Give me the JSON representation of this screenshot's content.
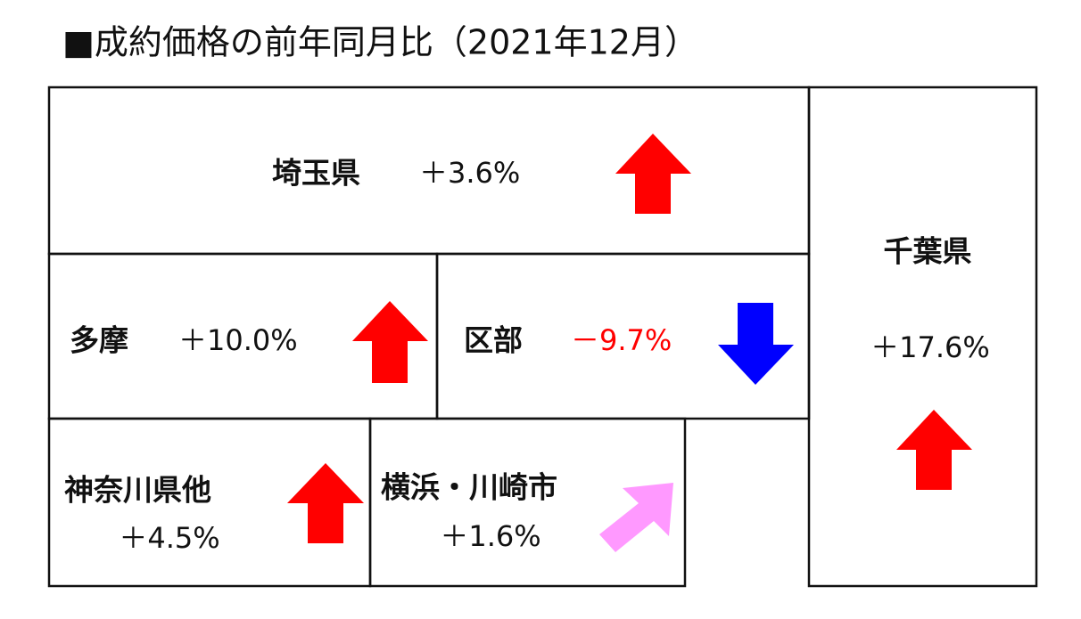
{
  "title": "■成約価格の前年同月比（2021年12月）",
  "regions": [
    {
      "name": "埼玉県",
      "change": "＋3.6%"
    },
    {
      "name": "千葉県",
      "change": "＋17.6%"
    },
    {
      "name": "多摩",
      "change": "＋10.0%"
    },
    {
      "name": "区部",
      "change": "－9.7%"
    },
    {
      "name": "神奈川県他",
      "change": "＋4.5%"
    },
    {
      "name": "横浜・川崎市",
      "change": "＋1.6%"
    }
  ]
}
